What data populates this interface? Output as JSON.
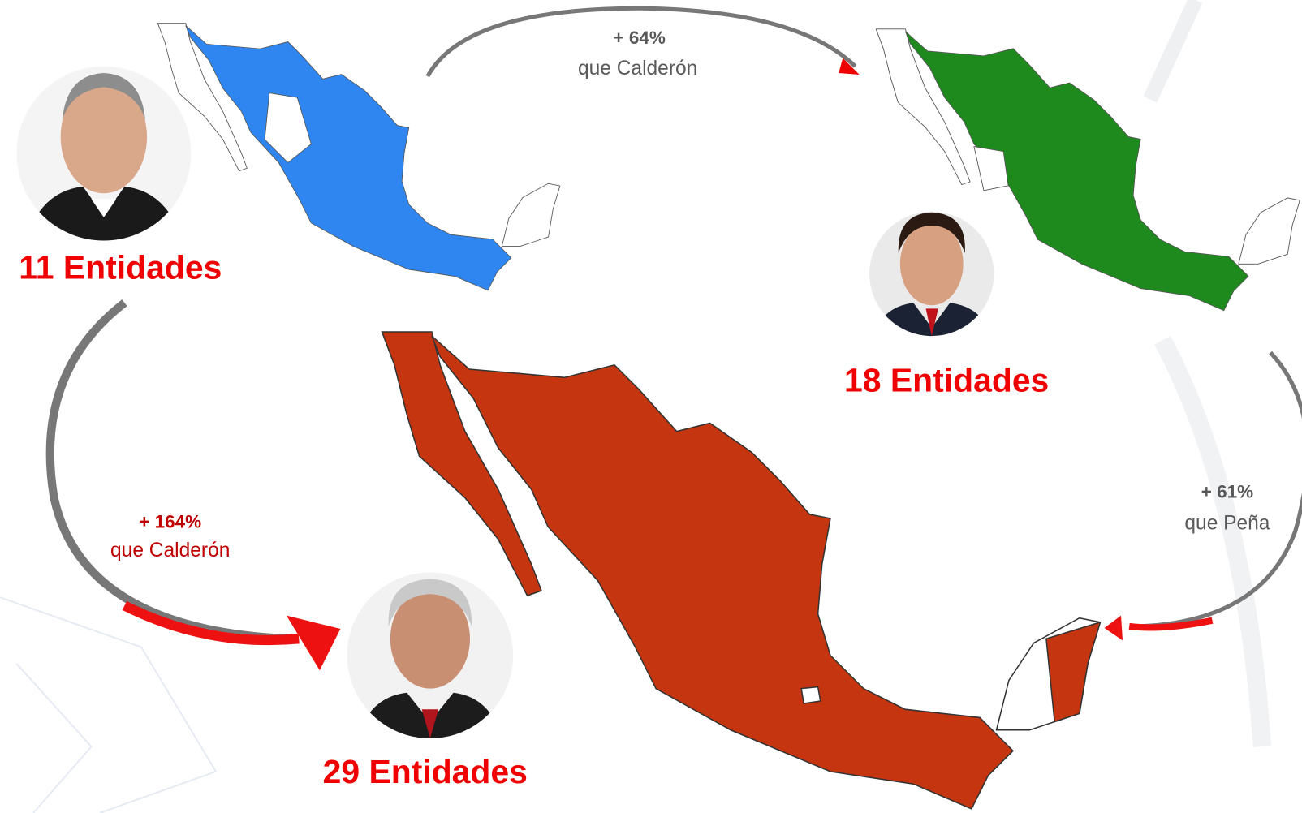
{
  "calderon": {
    "label": "11 Entidades"
  },
  "pena": {
    "label": "18 Entidades"
  },
  "amlo": {
    "label": "29 Entidades"
  },
  "arrows": [
    {
      "percent": "+ 64%",
      "text": "que Calderón"
    },
    {
      "percent": "+ 164%",
      "text": "que Calderón"
    },
    {
      "percent": "+ 61%",
      "text": "que Peña"
    }
  ]
}
